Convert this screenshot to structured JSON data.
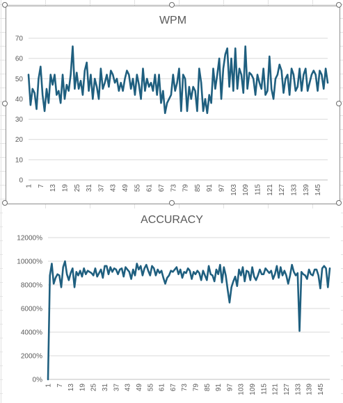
{
  "chart_data": [
    {
      "type": "line",
      "title": "WPM",
      "xlabel": "",
      "ylabel": "",
      "ylim": [
        0,
        70
      ],
      "yticks": [
        0,
        10,
        20,
        30,
        40,
        50,
        60,
        70
      ],
      "ytick_labels": [
        "0",
        "10",
        "20",
        "30",
        "40",
        "50",
        "60",
        "70"
      ],
      "xtick_labels": [
        "1",
        "7",
        "13",
        "19",
        "25",
        "31",
        "37",
        "43",
        "49",
        "55",
        "61",
        "67",
        "73",
        "79",
        "85",
        "91",
        "97",
        "103",
        "109",
        "115",
        "121",
        "127",
        "133",
        "139",
        "145"
      ],
      "color": "#1f5f7f",
      "grid": true,
      "x": [
        1,
        2,
        3,
        4,
        5,
        6,
        7,
        8,
        9,
        10,
        11,
        12,
        13,
        14,
        15,
        16,
        17,
        18,
        19,
        20,
        21,
        22,
        23,
        24,
        25,
        26,
        27,
        28,
        29,
        30,
        31,
        32,
        33,
        34,
        35,
        36,
        37,
        38,
        39,
        40,
        41,
        42,
        43,
        44,
        45,
        46,
        47,
        48,
        49,
        50,
        51,
        52,
        53,
        54,
        55,
        56,
        57,
        58,
        59,
        60,
        61,
        62,
        63,
        64,
        65,
        66,
        67,
        68,
        69,
        70,
        71,
        72,
        73,
        74,
        75,
        76,
        77,
        78,
        79,
        80,
        81,
        82,
        83,
        84,
        85,
        86,
        87,
        88,
        89,
        90,
        91,
        92,
        93,
        94,
        95,
        96,
        97,
        98,
        99,
        100,
        101,
        102,
        103,
        104,
        105,
        106,
        107,
        108,
        109,
        110,
        111,
        112,
        113,
        114,
        115,
        116,
        117,
        118,
        119,
        120,
        121,
        122,
        123,
        124,
        125,
        126,
        127,
        128,
        129,
        130,
        131,
        132,
        133,
        134,
        135,
        136,
        137,
        138,
        139,
        140,
        141,
        142,
        143,
        144,
        145,
        146,
        147,
        148,
        149,
        150
      ],
      "values": [
        52,
        37,
        45,
        43,
        35,
        50,
        56,
        42,
        34,
        45,
        38,
        52,
        47,
        52,
        42,
        44,
        38,
        52,
        40,
        47,
        44,
        52,
        66,
        45,
        53,
        45,
        49,
        42,
        54,
        58,
        44,
        52,
        40,
        50,
        46,
        40,
        55,
        45,
        48,
        52,
        46,
        54,
        52,
        48,
        50,
        44,
        48,
        44,
        50,
        54,
        52,
        45,
        50,
        42,
        52,
        47,
        40,
        55,
        44,
        50,
        46,
        48,
        44,
        52,
        42,
        52,
        38,
        44,
        33,
        38,
        40,
        42,
        52,
        44,
        48,
        55,
        34,
        52,
        50,
        34,
        46,
        40,
        46,
        44,
        34,
        55,
        48,
        34,
        40,
        33,
        42,
        38,
        55,
        45,
        52,
        60,
        40,
        55,
        62,
        65,
        46,
        60,
        44,
        65,
        45,
        55,
        52,
        43,
        66,
        45,
        53,
        52,
        50,
        42,
        52,
        48,
        45,
        55,
        42,
        44,
        61,
        45,
        40,
        50,
        52,
        57,
        54,
        43,
        50,
        52,
        42,
        55,
        52,
        44,
        46,
        55,
        44,
        52,
        55,
        44,
        48,
        52,
        54,
        52,
        44,
        54,
        52,
        45,
        55,
        48
      ]
    },
    {
      "type": "line",
      "title": "ACCURACY",
      "xlabel": "",
      "ylabel": "",
      "ylim": [
        0,
        12000
      ],
      "yticks": [
        0,
        2000,
        4000,
        6000,
        8000,
        10000,
        12000
      ],
      "ytick_labels": [
        "0%",
        "2000%",
        "4000%",
        "6000%",
        "8000%",
        "10000%",
        "12000%"
      ],
      "xtick_labels": [
        "1",
        "7",
        "13",
        "19",
        "25",
        "31",
        "37",
        "43",
        "49",
        "55",
        "61",
        "67",
        "73",
        "79",
        "85",
        "91",
        "97",
        "103",
        "109",
        "115",
        "121",
        "127",
        "133",
        "139",
        "145"
      ],
      "color": "#1f5f7f",
      "grid": true,
      "x": [
        1,
        2,
        3,
        4,
        5,
        6,
        7,
        8,
        9,
        10,
        11,
        12,
        13,
        14,
        15,
        16,
        17,
        18,
        19,
        20,
        21,
        22,
        23,
        24,
        25,
        26,
        27,
        28,
        29,
        30,
        31,
        32,
        33,
        34,
        35,
        36,
        37,
        38,
        39,
        40,
        41,
        42,
        43,
        44,
        45,
        46,
        47,
        48,
        49,
        50,
        51,
        52,
        53,
        54,
        55,
        56,
        57,
        58,
        59,
        60,
        61,
        62,
        63,
        64,
        65,
        66,
        67,
        68,
        69,
        70,
        71,
        72,
        73,
        74,
        75,
        76,
        77,
        78,
        79,
        80,
        81,
        82,
        83,
        84,
        85,
        86,
        87,
        88,
        89,
        90,
        91,
        92,
        93,
        94,
        95,
        96,
        97,
        98,
        99,
        100,
        101,
        102,
        103,
        104,
        105,
        106,
        107,
        108,
        109,
        110,
        111,
        112,
        113,
        114,
        115,
        116,
        117,
        118,
        119,
        120,
        121,
        122,
        123,
        124,
        125,
        126,
        127,
        128,
        129,
        130,
        131,
        132,
        133,
        134,
        135,
        136,
        137,
        138,
        139,
        140,
        141,
        142,
        143,
        144,
        145,
        146,
        147,
        148,
        149,
        150
      ],
      "values": [
        0,
        8800,
        9800,
        8100,
        8600,
        8900,
        8800,
        7800,
        9500,
        10000,
        8900,
        8400,
        9000,
        9400,
        7800,
        9100,
        8800,
        9200,
        8700,
        9400,
        8900,
        9200,
        9100,
        9000,
        8800,
        9400,
        8700,
        9000,
        9300,
        8600,
        9600,
        9600,
        8900,
        9500,
        9100,
        9400,
        9300,
        8900,
        9300,
        9400,
        8700,
        9500,
        9300,
        9100,
        8500,
        9300,
        8800,
        9800,
        9300,
        9600,
        8800,
        9400,
        9700,
        9200,
        8800,
        9600,
        9400,
        8800,
        9300,
        9000,
        9200,
        8600,
        8100,
        8600,
        8800,
        9200,
        9100,
        9300,
        9500,
        8900,
        9300,
        8600,
        9100,
        9000,
        9400,
        9200,
        8500,
        9100,
        8900,
        9200,
        9000,
        8400,
        9200,
        8800,
        8400,
        9600,
        8900,
        8800,
        8300,
        9300,
        8900,
        9700,
        8200,
        9500,
        8800,
        7600,
        6500,
        7800,
        8300,
        8700,
        7900,
        9300,
        8800,
        9500,
        8300,
        9200,
        9100,
        8400,
        9500,
        8700,
        8400,
        8800,
        9300,
        8900,
        8900,
        9400,
        9200,
        9000,
        9200,
        8500,
        8900,
        9600,
        8600,
        9500,
        8800,
        9200,
        8800,
        8100,
        8800,
        9700,
        9100,
        8800,
        9000,
        4100,
        9100,
        8900,
        8800,
        8500,
        9300,
        8900,
        8800,
        9300,
        9300,
        8800,
        7700,
        9400,
        9600,
        9400,
        7800,
        9400
      ]
    }
  ]
}
